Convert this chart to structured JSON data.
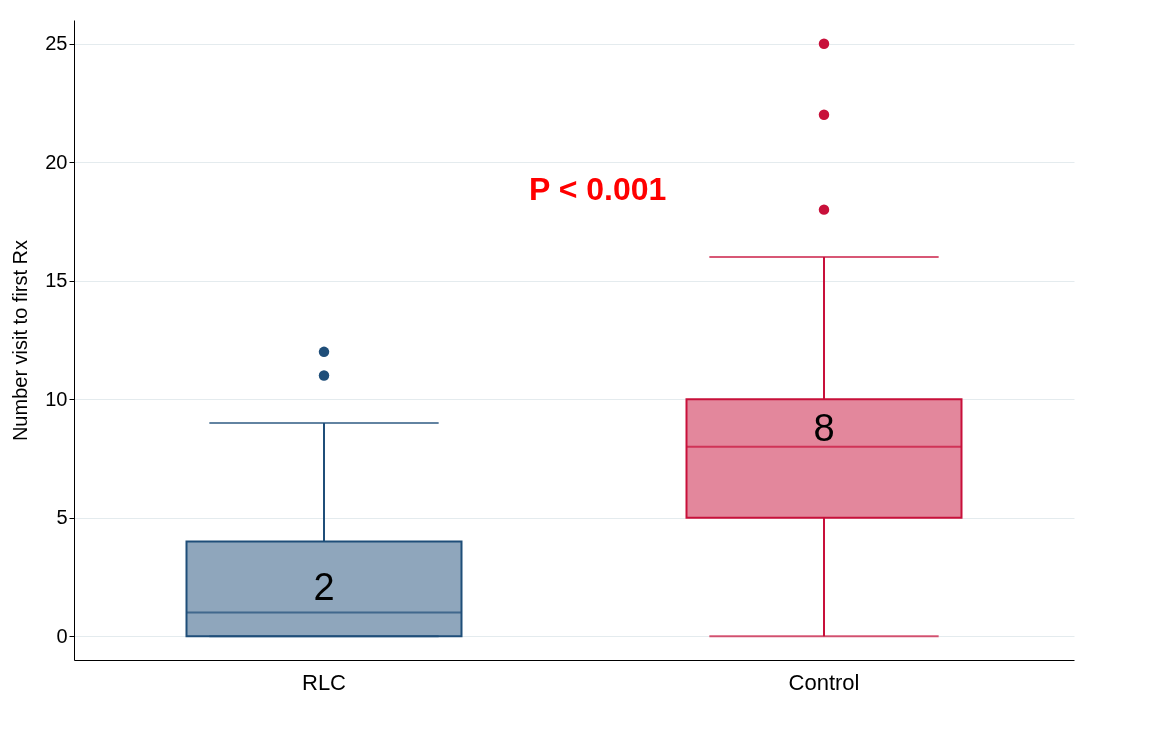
{
  "chart_data": {
    "type": "box",
    "ylabel": "Number visit to first Rx",
    "categories": [
      "RLC",
      "Control"
    ],
    "colors": [
      "#1f4e79",
      "#c8103a"
    ],
    "boxes": [
      {
        "low": 0,
        "q1": 0,
        "median": 1,
        "q3": 4,
        "high": 9,
        "outliers": [
          11,
          12
        ]
      },
      {
        "low": 0,
        "q1": 5,
        "median": 8,
        "q3": 10,
        "high": 16,
        "outliers": [
          18,
          22,
          25
        ]
      }
    ],
    "ylim": [
      -1,
      26
    ],
    "yticks": [
      0,
      5,
      10,
      15,
      20,
      25
    ],
    "grid": "y",
    "annotations": [
      "P < 0.001",
      "2",
      "8"
    ]
  }
}
